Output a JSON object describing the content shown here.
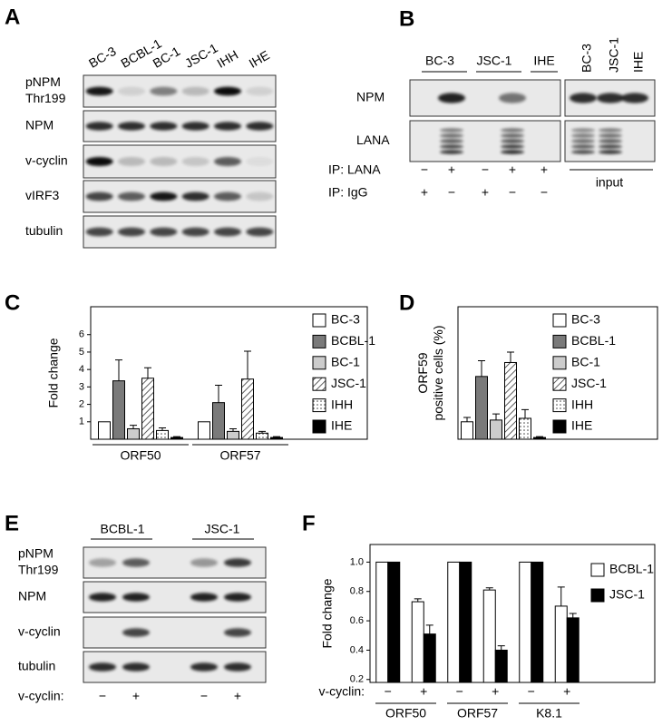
{
  "panel_labels": [
    "A",
    "B",
    "C",
    "D",
    "E",
    "F"
  ],
  "blot_a": {
    "lanes": [
      "BC-3",
      "BCBL-1",
      "BC-1",
      "JSC-1",
      "IHH",
      "IHE"
    ],
    "rows": [
      [
        "pNPM",
        "Thr199"
      ],
      [
        "NPM"
      ],
      [
        "v-cyclin"
      ],
      [
        "vIRF3"
      ],
      [
        "tubulin"
      ]
    ]
  },
  "blot_b": {
    "groups": [
      "BC-3",
      "JSC-1",
      "IHE"
    ],
    "input_lanes": [
      "BC-3",
      "JSC-1",
      "IHE"
    ],
    "rows": [
      "NPM",
      "LANA"
    ],
    "ip_rows": [
      {
        "label": "IP: LANA",
        "signs": [
          "−",
          "+",
          "−",
          "+",
          "+"
        ]
      },
      {
        "label": "IP: IgG",
        "signs": [
          "+",
          "−",
          "+",
          "−",
          "−"
        ]
      }
    ],
    "input_label": "input"
  },
  "blot_e": {
    "groups": [
      "BCBL-1",
      "JSC-1"
    ],
    "rows": [
      [
        "pNPM",
        "Thr199"
      ],
      [
        "NPM"
      ],
      [
        "v-cyclin"
      ],
      [
        "tubulin"
      ]
    ],
    "treatment_label": "v-cyclin:",
    "signs": [
      "−",
      "+",
      "−",
      "+"
    ]
  },
  "chart_data": [
    {
      "type": "bar",
      "y_label": [
        "Fold change"
      ],
      "categories": [
        "ORF50",
        "ORF57"
      ],
      "ylim": [
        0,
        7.6
      ],
      "yticks": [
        1,
        2,
        3,
        4,
        5,
        6
      ],
      "legend": "right",
      "series": [
        {
          "name": "BC-3",
          "color": "#ffffff",
          "values": [
            1,
            1
          ],
          "errors": [
            null,
            null
          ]
        },
        {
          "name": "BCBL-1",
          "color": "#7a7a7a",
          "values": [
            3.35,
            2.1
          ],
          "errors": [
            1.2,
            1.0
          ]
        },
        {
          "name": "BC-1",
          "color": "#cccccc",
          "values": [
            0.6,
            0.45
          ],
          "errors": [
            0.2,
            0.15
          ]
        },
        {
          "name": "JSC-1",
          "color": "#ffffff",
          "pattern": "hatch",
          "values": [
            3.5,
            3.45
          ],
          "errors": [
            0.6,
            1.6
          ]
        },
        {
          "name": "IHH",
          "color": "#ffffff",
          "pattern": "dots",
          "values": [
            0.5,
            0.35
          ],
          "errors": [
            0.15,
            0.1
          ]
        },
        {
          "name": "IHE",
          "color": "#000000",
          "values": [
            0.1,
            0.1
          ],
          "errors": [
            0.05,
            0.05
          ]
        }
      ]
    },
    {
      "type": "bar",
      "y_label": [
        "ORF59",
        "positive cells (%)"
      ],
      "categories": [
        null
      ],
      "ylim": [
        0,
        7.6
      ],
      "legend": "right",
      "series": [
        {
          "name": "BC-3",
          "color": "#ffffff",
          "values": [
            1.0
          ],
          "errors": [
            0.25
          ]
        },
        {
          "name": "BCBL-1",
          "color": "#7a7a7a",
          "values": [
            3.6
          ],
          "errors": [
            0.9
          ]
        },
        {
          "name": "BC-1",
          "color": "#cccccc",
          "values": [
            1.1
          ],
          "errors": [
            0.35
          ]
        },
        {
          "name": "JSC-1",
          "color": "#ffffff",
          "pattern": "hatch",
          "values": [
            4.4
          ],
          "errors": [
            0.6
          ]
        },
        {
          "name": "IHH",
          "color": "#ffffff",
          "pattern": "dots",
          "values": [
            1.2
          ],
          "errors": [
            0.5
          ]
        },
        {
          "name": "IHE",
          "color": "#000000",
          "values": [
            0.1
          ],
          "errors": [
            0.05
          ]
        }
      ]
    },
    {
      "type": "bar",
      "y_label": [
        "Fold change"
      ],
      "categories": [
        "−",
        "+",
        "−",
        "+",
        "−",
        "+"
      ],
      "group_labels": [
        "ORF50",
        "ORF57",
        "K8.1"
      ],
      "x_row_label": "v-cyclin:",
      "ylim": [
        0.18,
        1.12
      ],
      "yticks": [
        0.2,
        0.4,
        0.6,
        0.8,
        {
          "value": 1,
          "label": "1.0"
        }
      ],
      "legend": "top-right",
      "series": [
        {
          "name": "BCBL-1",
          "color": "#ffffff",
          "values": [
            1,
            0.73,
            1,
            0.81,
            1,
            0.7
          ],
          "errors": [
            null,
            0.02,
            null,
            0.015,
            null,
            0.13
          ]
        },
        {
          "name": "JSC-1",
          "color": "#000000",
          "values": [
            1,
            0.51,
            1,
            0.4,
            1,
            0.62
          ],
          "errors": [
            null,
            0.06,
            null,
            0.03,
            null,
            0.03
          ]
        }
      ]
    }
  ]
}
